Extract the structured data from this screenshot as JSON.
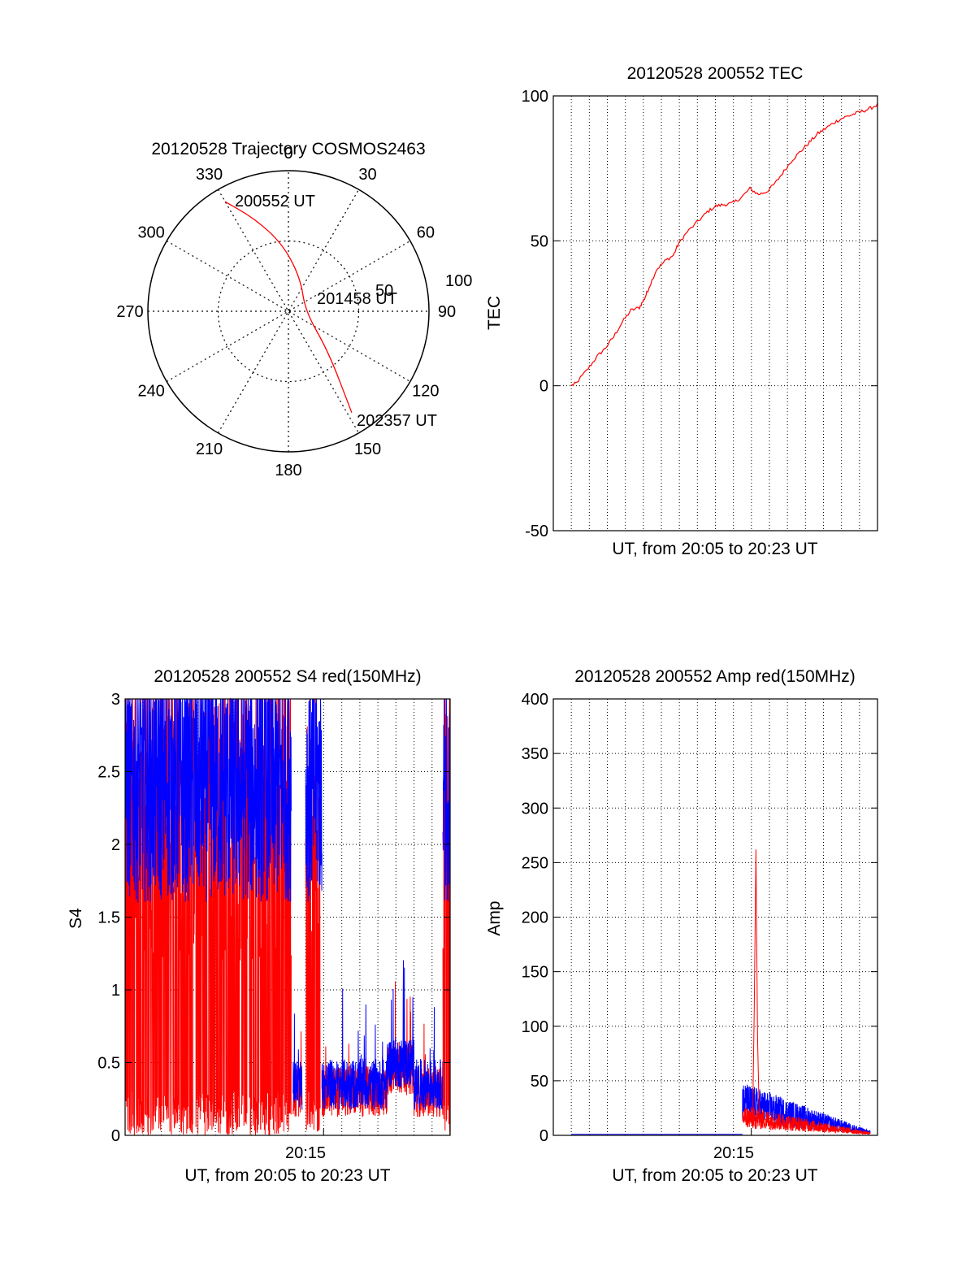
{
  "colors": {
    "red": "#ff0000",
    "blue": "#0000ff",
    "axis": "#000000"
  },
  "chart_data": [
    {
      "type": "polar",
      "title": "20120528 Trajectory COSMOS2463",
      "angle_labels": [
        "0",
        "30",
        "60",
        "90",
        "120",
        "150",
        "180",
        "210",
        "240",
        "270",
        "300",
        "330"
      ],
      "radius_labels": [
        "50",
        "100"
      ],
      "rmax": 100,
      "trajectory": {
        "color": "red",
        "points": [
          {
            "az": 330,
            "r": 90,
            "label": "200552 UT"
          },
          {
            "az": 340,
            "r": 70
          },
          {
            "az": 355,
            "r": 48
          },
          {
            "az": 20,
            "r": 25
          },
          {
            "az": 90,
            "r": 12,
            "label": "201458 UT"
          },
          {
            "az": 135,
            "r": 40
          },
          {
            "az": 148,
            "r": 85,
            "label": "202357 UT"
          }
        ]
      }
    },
    {
      "type": "line",
      "title": "20120528 200552 TEC",
      "xlabel": "UT, from 20:05 to 20:23 UT",
      "ylabel": "TEC",
      "xlim": [
        0,
        18
      ],
      "ylim": [
        -50,
        100
      ],
      "yticks": [
        "-50",
        "0",
        "50",
        "100"
      ],
      "xgrid_count": 17,
      "series": [
        {
          "color": "red",
          "x": [
            0,
            0.3,
            1,
            1.5,
            2,
            2.5,
            3,
            3.5,
            4,
            4.3,
            4.5,
            5,
            5.5,
            6,
            6.3,
            6.8,
            7.5,
            8,
            8.5,
            9,
            9.5,
            10,
            10.5,
            11,
            11.5,
            12,
            12.5,
            13,
            13.5,
            14,
            14.5,
            15,
            15.5,
            16,
            16.5,
            17,
            17.5,
            18
          ],
          "y": [
            0,
            1,
            6,
            10,
            13,
            17,
            22,
            26,
            27,
            30,
            33,
            40,
            43,
            45,
            49,
            53,
            57,
            60,
            62,
            62.5,
            63,
            65,
            68,
            66,
            67,
            70,
            74,
            78,
            81,
            84,
            87,
            89,
            91,
            92.5,
            93.5,
            94.5,
            95.5,
            97
          ]
        }
      ]
    },
    {
      "type": "line",
      "title": "20120528 200552 S4 red(150MHz)",
      "xlabel": "UT, from 20:05 to 20:23 UT",
      "ylabel": "S4",
      "xlim": [
        0,
        18
      ],
      "ylim": [
        0,
        3
      ],
      "yticks": [
        "0",
        "0.5",
        "1",
        "1.5",
        "2",
        "2.5",
        "3"
      ],
      "xtick_label": "20:15",
      "xtick_value": 10,
      "xgrid_count": 17,
      "series": [
        {
          "color": "red",
          "kind": "noisy-high",
          "segments": [
            [
              0,
              9.2
            ],
            [
              10,
              10.8
            ]
          ],
          "level": 1.6
        },
        {
          "color": "blue",
          "kind": "noisy-high",
          "segments": [
            [
              0,
              9.2
            ],
            [
              10,
              10.9
            ]
          ],
          "level": 2.5
        },
        {
          "color": "red",
          "kind": "noisy-low",
          "segments": [
            [
              9.3,
              9.8
            ],
            [
              10.9,
              17.6
            ]
          ],
          "level": 0.3
        },
        {
          "color": "blue",
          "kind": "noisy-low",
          "segments": [
            [
              9.3,
              9.8
            ],
            [
              10.9,
              17.6
            ]
          ],
          "level": 0.35
        },
        {
          "color": "red",
          "kind": "noisy-high",
          "segments": [
            [
              17.6,
              18
            ]
          ],
          "level": 2.3
        },
        {
          "color": "blue",
          "kind": "noisy-high",
          "segments": [
            [
              17.6,
              18
            ]
          ],
          "level": 2.5
        }
      ]
    },
    {
      "type": "line",
      "title": "20120528 200552 Amp red(150MHz)",
      "xlabel": "UT, from 20:05 to 20:23 UT",
      "ylabel": "Amp",
      "xlim": [
        0,
        18
      ],
      "ylim": [
        0,
        400
      ],
      "yticks": [
        "0",
        "50",
        "100",
        "150",
        "200",
        "250",
        "300",
        "350",
        "400"
      ],
      "xtick_label": "20:15",
      "xtick_value": 10,
      "xgrid_count": 17,
      "series": [
        {
          "color": "blue",
          "kind": "flat",
          "range": [
            1,
            10.5
          ],
          "level": 1
        },
        {
          "color": "blue",
          "kind": "burst",
          "range": [
            10.5,
            17.6
          ],
          "start_level": 35,
          "end_level": 3
        },
        {
          "color": "red",
          "kind": "burst",
          "range": [
            10.5,
            17.6
          ],
          "start_level": 20,
          "end_level": 2
        },
        {
          "color": "red",
          "kind": "spike",
          "x": 11.25,
          "peak": 262
        }
      ]
    }
  ]
}
